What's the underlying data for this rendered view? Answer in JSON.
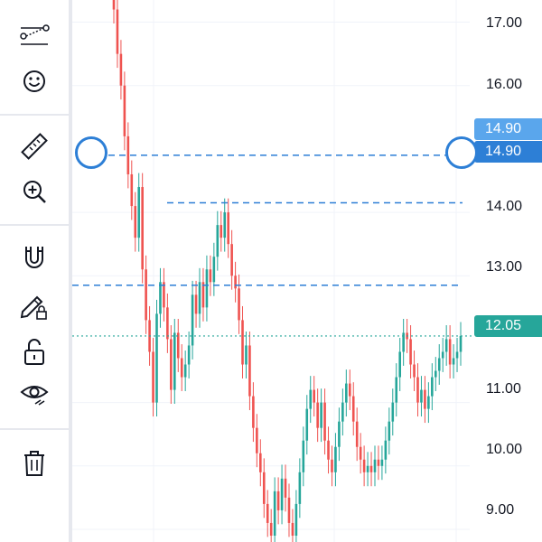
{
  "toolbar": {
    "tools": [
      {
        "icon": "trend-line-icon"
      },
      {
        "icon": "smiley-icon"
      },
      {
        "icon": "ruler-icon"
      },
      {
        "icon": "zoom-in-icon"
      },
      {
        "icon": "magnet-icon"
      },
      {
        "icon": "lock-pencil-icon"
      },
      {
        "icon": "unlock-icon"
      },
      {
        "icon": "eye-icon"
      },
      {
        "icon": "trash-icon"
      }
    ]
  },
  "price_axis": {
    "ticks": [
      "17.00",
      "16.00",
      "14.00",
      "13.00",
      "11.00",
      "10.00",
      "9.00"
    ]
  },
  "tags": {
    "drawing_label_upper": "14.90",
    "drawing_label_selected": "14.90",
    "last_price": "12.05"
  },
  "colors": {
    "up": "#26a69a",
    "down": "#ef5350",
    "drawing": "#2d7fd6",
    "last_price": "#26a69a"
  },
  "horizontal_lines": [
    14.9,
    14.15,
    12.85
  ],
  "chart_data": {
    "type": "candlestick",
    "y_axis": {
      "range": [
        8.8,
        17.35
      ]
    },
    "last_price": 12.05,
    "x": [
      1,
      2,
      3,
      4,
      5,
      6,
      7,
      8,
      9,
      10,
      11,
      12,
      13,
      14,
      15,
      16,
      17,
      18,
      19,
      20,
      21,
      22,
      23,
      24,
      25,
      26,
      27,
      28,
      29,
      30,
      31,
      32,
      33,
      34,
      35,
      36,
      37,
      38,
      39,
      40,
      41,
      42,
      43,
      44,
      45,
      46,
      47,
      48,
      49,
      50,
      51,
      52,
      53,
      54,
      55,
      56,
      57,
      58,
      59,
      60,
      61,
      62,
      63,
      64,
      65,
      66,
      67,
      68,
      69,
      70,
      71,
      72,
      73,
      74,
      75,
      76,
      77,
      78,
      79,
      80,
      81,
      82,
      83,
      84,
      85,
      86,
      87,
      88,
      89,
      90,
      91,
      92,
      93,
      94,
      95,
      96,
      97,
      98
    ],
    "close": [
      17.2,
      16.5,
      16.0,
      15.2,
      14.6,
      14.1,
      13.6,
      14.4,
      13.1,
      12.3,
      11.8,
      11.0,
      12.4,
      12.9,
      12.5,
      12.0,
      11.2,
      12.1,
      11.7,
      11.4,
      11.6,
      11.9,
      12.7,
      12.4,
      12.9,
      12.5,
      13.1,
      12.9,
      13.3,
      13.8,
      13.6,
      14.0,
      13.5,
      13.0,
      12.8,
      12.3,
      11.6,
      11.9,
      11.1,
      10.6,
      10.2,
      9.9,
      9.4,
      9.1,
      8.9,
      9.6,
      9.3,
      9.8,
      9.5,
      9.1,
      8.9,
      9.4,
      9.9,
      10.4,
      10.9,
      11.2,
      11.0,
      10.6,
      11.0,
      10.4,
      10.1,
      9.9,
      10.3,
      10.7,
      11.0,
      11.3,
      11.1,
      10.7,
      10.3,
      10.1,
      9.9,
      10.0,
      9.9,
      10.1,
      10.0,
      10.1,
      10.4,
      10.7,
      11.0,
      11.4,
      11.8,
      12.1,
      12.0,
      11.6,
      11.4,
      11.0,
      11.2,
      10.9,
      11.1,
      11.4,
      11.5,
      11.7,
      11.8,
      12.0,
      11.6,
      11.7,
      11.8,
      12.05
    ]
  }
}
